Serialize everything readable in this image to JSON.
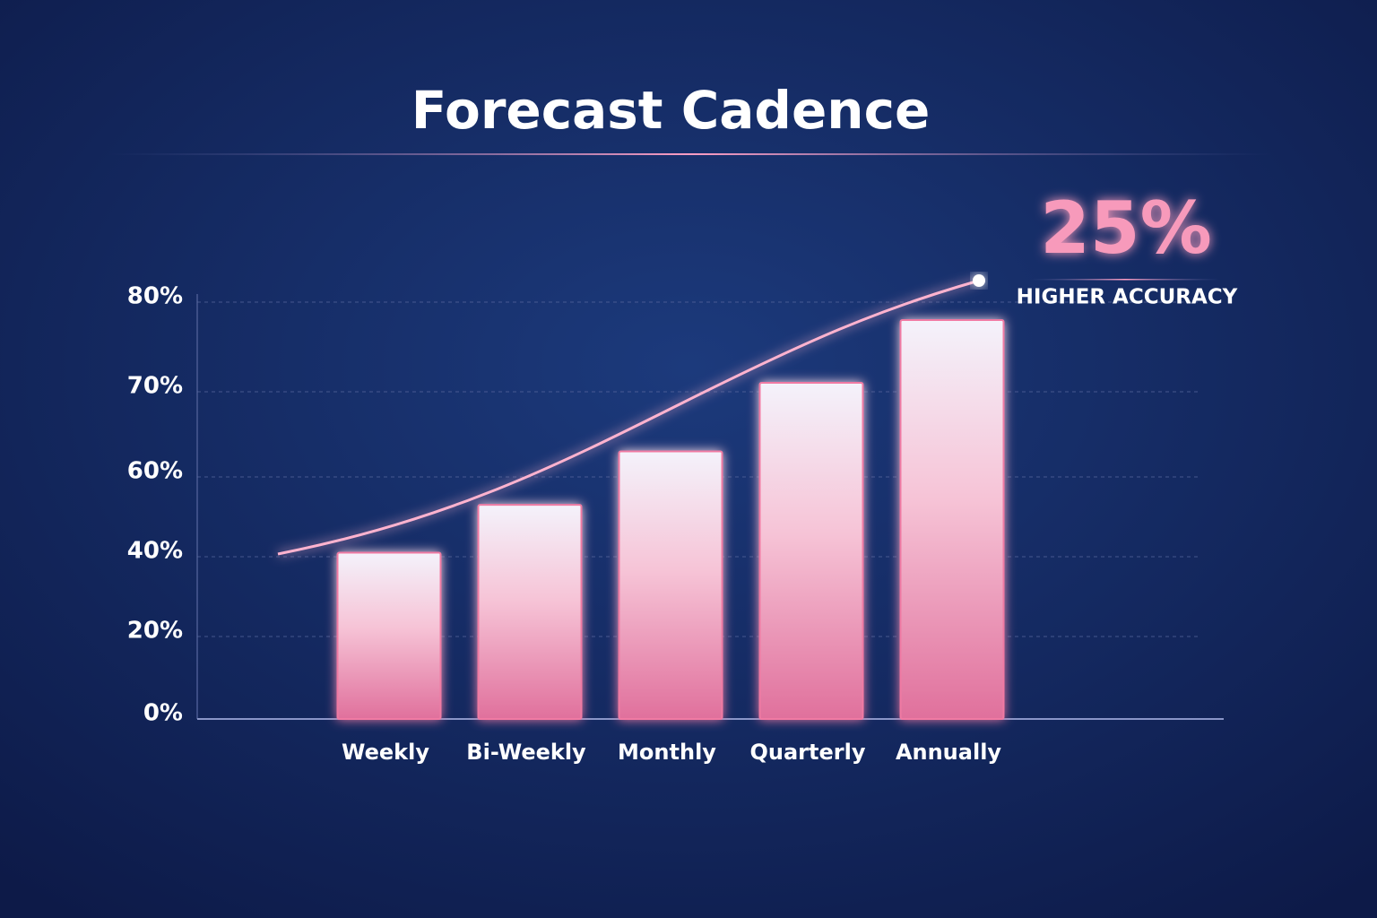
{
  "chart_data": {
    "type": "bar",
    "title": "Forecast Cadence",
    "categories": [
      "Weekly",
      "Bi-Weekly",
      "Monthly",
      "Quarterly",
      "Annually"
    ],
    "values": [
      41,
      53,
      63,
      71,
      78
    ],
    "color": "#f07aa3",
    "ylim": [
      0,
      80
    ],
    "yticks": [
      {
        "value": 0,
        "label": "0%"
      },
      {
        "value": 20,
        "label": "20%"
      },
      {
        "value": 40,
        "label": "40%"
      },
      {
        "value": 60,
        "label": "60%"
      },
      {
        "value": 70,
        "label": "70%"
      },
      {
        "value": 80,
        "label": "80%"
      }
    ],
    "grid": true,
    "annotation": {
      "headline": "25%",
      "text": "HIGHER ACCURACY"
    }
  }
}
